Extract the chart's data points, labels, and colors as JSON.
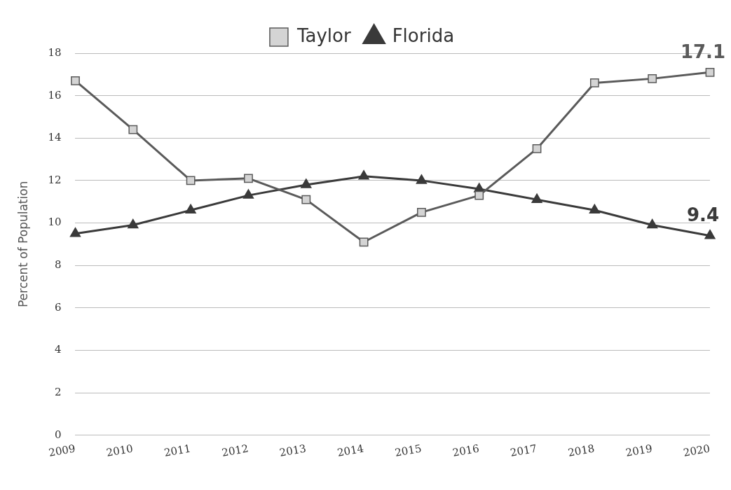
{
  "chart_data": {
    "type": "line",
    "ylabel": "Percent of Population",
    "categories": [
      "2009",
      "2010",
      "2011",
      "2012",
      "2013",
      "2014",
      "2015",
      "2016",
      "2017",
      "2018",
      "2019",
      "2020"
    ],
    "series": [
      {
        "name": "Taylor",
        "color": "#5a5a5a",
        "marker": "square",
        "values": [
          16.7,
          14.4,
          12.0,
          12.1,
          11.1,
          9.1,
          10.5,
          11.3,
          13.5,
          16.6,
          16.8,
          17.1
        ],
        "value_labels": [
          null,
          null,
          null,
          null,
          null,
          null,
          null,
          null,
          null,
          null,
          null,
          "17.1"
        ]
      },
      {
        "name": "Florida",
        "color": "#3a3a3a",
        "marker": "triangle",
        "values": [
          9.5,
          9.9,
          10.6,
          11.3,
          11.8,
          12.2,
          12.0,
          11.6,
          11.1,
          10.6,
          9.9,
          9.4
        ],
        "value_labels": [
          null,
          null,
          null,
          null,
          null,
          null,
          null,
          null,
          null,
          null,
          null,
          "9.4"
        ]
      }
    ],
    "ylim": [
      0,
      18
    ],
    "yticks": [
      0,
      2,
      4,
      6,
      8,
      10,
      12,
      14,
      16,
      18
    ],
    "grid": "y",
    "legend": "top",
    "line_style": "solid"
  }
}
